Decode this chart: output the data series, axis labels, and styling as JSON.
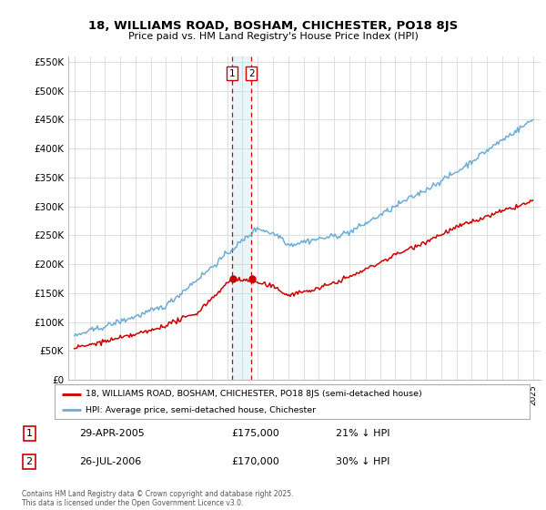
{
  "title_line1": "18, WILLIAMS ROAD, BOSHAM, CHICHESTER, PO18 8JS",
  "title_line2": "Price paid vs. HM Land Registry's House Price Index (HPI)",
  "ylabel_ticks": [
    "£0",
    "£50K",
    "£100K",
    "£150K",
    "£200K",
    "£250K",
    "£300K",
    "£350K",
    "£400K",
    "£450K",
    "£500K",
    "£550K"
  ],
  "ytick_values": [
    0,
    50000,
    100000,
    150000,
    200000,
    250000,
    300000,
    350000,
    400000,
    450000,
    500000,
    550000
  ],
  "hpi_color": "#6baed6",
  "price_color": "#cc0000",
  "vline_color": "#cc0000",
  "span_color": "#add8e6",
  "sale1_date": "29-APR-2005",
  "sale1_price": "£175,000",
  "sale1_hpi": "21% ↓ HPI",
  "sale1_year": 2005.33,
  "sale2_date": "26-JUL-2006",
  "sale2_price": "£170,000",
  "sale2_hpi": "30% ↓ HPI",
  "sale2_year": 2006.58,
  "legend_label1": "18, WILLIAMS ROAD, BOSHAM, CHICHESTER, PO18 8JS (semi-detached house)",
  "legend_label2": "HPI: Average price, semi-detached house, Chichester",
  "footnote": "Contains HM Land Registry data © Crown copyright and database right 2025.\nThis data is licensed under the Open Government Licence v3.0.",
  "background_color": "#ffffff",
  "grid_color": "#dddddd",
  "start_year": 1995,
  "end_year": 2025
}
